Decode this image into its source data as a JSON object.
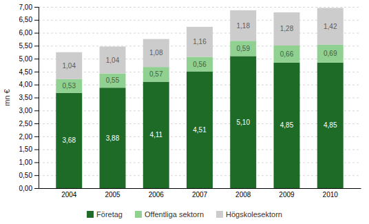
{
  "chart_data": {
    "type": "bar",
    "stacked": true,
    "data_labels": true,
    "grid": true,
    "legend": "bottom",
    "ylabel": "mn €",
    "categories": [
      "2004",
      "2005",
      "2006",
      "2007",
      "2008",
      "2009",
      "2010"
    ],
    "series": [
      {
        "name": "Företag",
        "color": "#1e6b28",
        "values": [
          3.68,
          3.88,
          4.11,
          4.51,
          5.1,
          4.85,
          4.85
        ],
        "value_labels": [
          "3,68",
          "3,88",
          "4,11",
          "4,51",
          "5,10",
          "4,85",
          "4,85"
        ]
      },
      {
        "name": "Offentliga sektorn",
        "color": "#90d090",
        "values": [
          0.53,
          0.55,
          0.57,
          0.56,
          0.59,
          0.66,
          0.69
        ],
        "value_labels": [
          "0,53",
          "0,55",
          "0,57",
          "0,56",
          "0,59",
          "0,66",
          "0,69"
        ]
      },
      {
        "name": "Högskolesektorn",
        "color": "#cccccc",
        "values": [
          1.04,
          1.04,
          1.08,
          1.16,
          1.18,
          1.28,
          1.42
        ],
        "value_labels": [
          "1,04",
          "1,04",
          "1,08",
          "1,16",
          "1,18",
          "1,28",
          "1,42"
        ]
      }
    ],
    "ylim": [
      0,
      7.0
    ],
    "yticks": [
      {
        "value": 0.0,
        "label": "0,00"
      },
      {
        "value": 0.5,
        "label": "0,50"
      },
      {
        "value": 1.0,
        "label": "1,00"
      },
      {
        "value": 1.5,
        "label": "1,50"
      },
      {
        "value": 2.0,
        "label": "2,00"
      },
      {
        "value": 2.5,
        "label": "2,50"
      },
      {
        "value": 3.0,
        "label": "3,00"
      },
      {
        "value": 3.5,
        "label": "3,50"
      },
      {
        "value": 4.0,
        "label": "4,00"
      },
      {
        "value": 4.5,
        "label": "4,50"
      },
      {
        "value": 5.0,
        "label": "5,00"
      },
      {
        "value": 5.5,
        "label": "5,50"
      },
      {
        "value": 6.0,
        "label": "6,00"
      },
      {
        "value": 6.5,
        "label": "6,50"
      },
      {
        "value": 7.0,
        "label": "7,00"
      }
    ]
  }
}
